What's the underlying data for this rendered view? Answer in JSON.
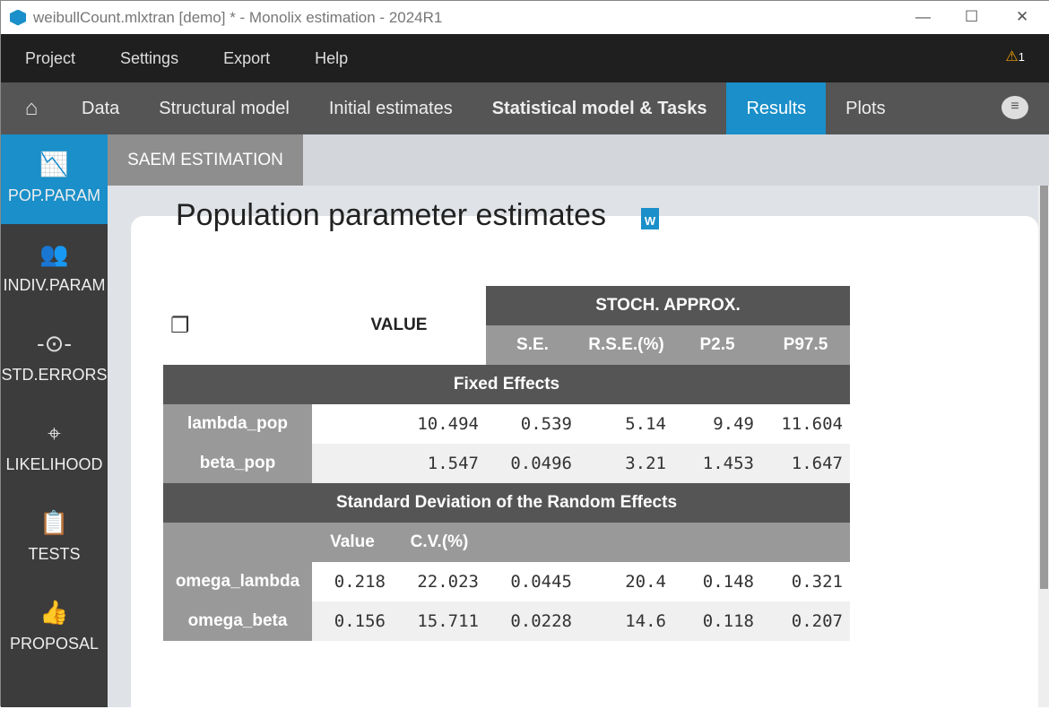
{
  "window": {
    "title": "weibullCount.mlxtran [demo] * - Monolix estimation - 2024R1",
    "controls": [
      "—",
      "☐",
      "✕"
    ]
  },
  "menu": [
    "Project",
    "Settings",
    "Export",
    "Help"
  ],
  "warning_count": "1",
  "tabs": [
    {
      "label": "Data"
    },
    {
      "label": "Structural model"
    },
    {
      "label": "Initial estimates"
    },
    {
      "label": "Statistical model & Tasks"
    },
    {
      "label": "Results"
    },
    {
      "label": "Plots"
    }
  ],
  "sidebar": [
    {
      "label": "POP.PARAM",
      "icon": "chart-icon"
    },
    {
      "label": "INDIV.PARAM",
      "icon": "users-icon"
    },
    {
      "label": "STD.ERRORS",
      "icon": "std-errors-icon"
    },
    {
      "label": "LIKELIHOOD",
      "icon": "crosshair-icon"
    },
    {
      "label": "TESTS",
      "icon": "clipboard-check-icon"
    },
    {
      "label": "PROPOSAL",
      "icon": "thumbs-up-icon"
    }
  ],
  "subtab": "SAEM ESTIMATION",
  "page_title": "Population parameter estimates",
  "word_icon": "W",
  "table": {
    "value_header": "VALUE",
    "group_header": "STOCH. APPROX.",
    "columns": [
      "S.E.",
      "R.S.E.(%)",
      "P2.5",
      "P97.5"
    ],
    "fixed_title": "Fixed Effects",
    "fixed": [
      {
        "name": "lambda_pop",
        "value": "10.494",
        "se": "0.539",
        "rse": "5.14",
        "p25": "9.49",
        "p975": "11.604"
      },
      {
        "name": "beta_pop",
        "value": "1.547",
        "se": "0.0496",
        "rse": "3.21",
        "p25": "1.453",
        "p975": "1.647"
      }
    ],
    "random_title": "Standard Deviation of the Random Effects",
    "random_cols": [
      "Value",
      "C.V.(%)"
    ],
    "random": [
      {
        "name": "omega_lambda",
        "value": "0.218",
        "cv": "22.023",
        "se": "0.0445",
        "rse": "20.4",
        "p25": "0.148",
        "p975": "0.321"
      },
      {
        "name": "omega_beta",
        "value": "0.156",
        "cv": "15.711",
        "se": "0.0228",
        "rse": "14.6",
        "p25": "0.118",
        "p975": "0.207"
      }
    ]
  }
}
